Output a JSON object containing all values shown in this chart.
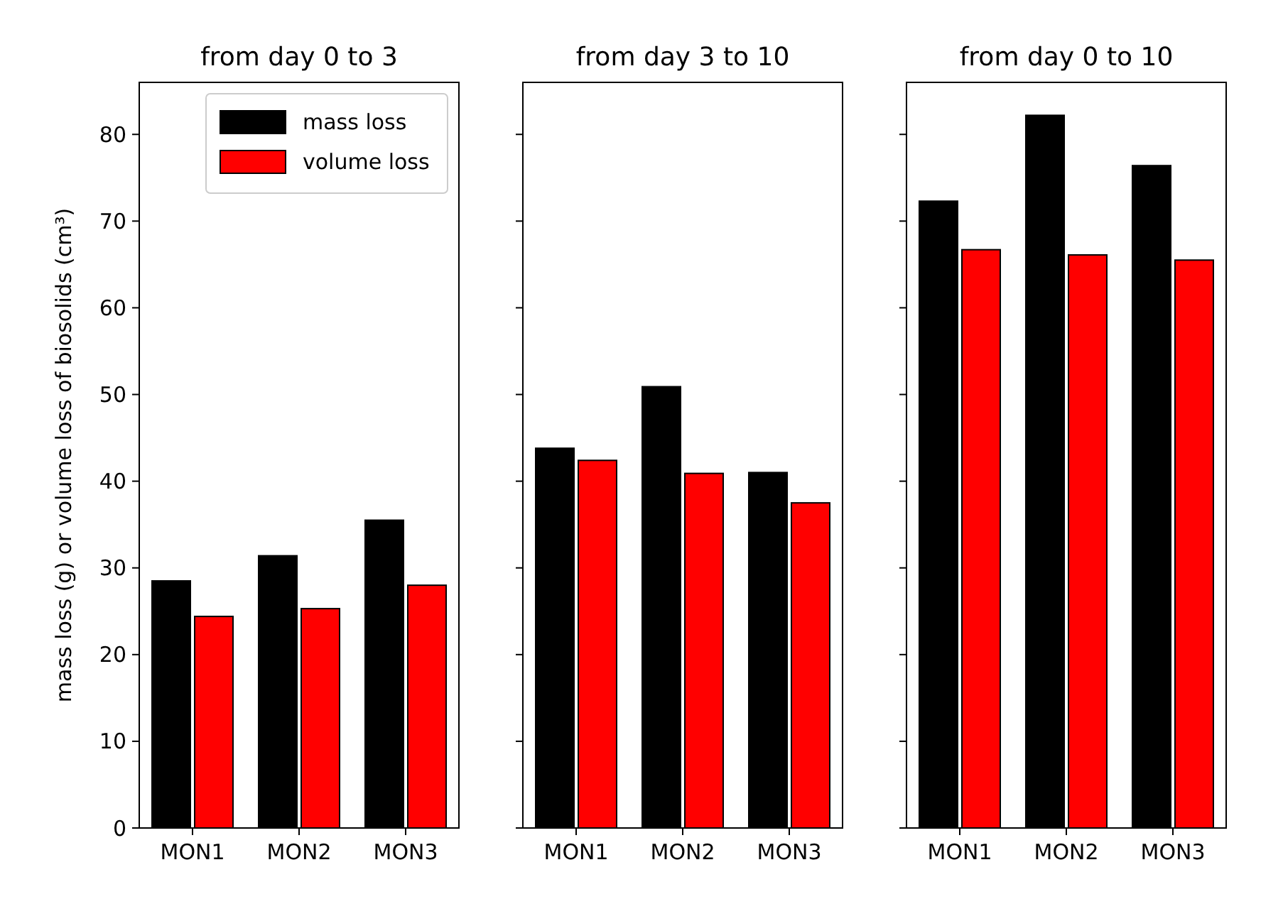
{
  "chart_data": [
    {
      "type": "bar",
      "title": "from day 0 to 3",
      "ylabel": "mass loss (g) or volume loss of biosolids (cm³)",
      "categories": [
        "MON1",
        "MON2",
        "MON3"
      ],
      "series": [
        {
          "name": "mass loss",
          "color": "#000000",
          "values": [
            28.5,
            31.4,
            35.5
          ]
        },
        {
          "name": "volume loss",
          "color": "#ff0000",
          "values": [
            24.4,
            25.3,
            28.0
          ]
        }
      ],
      "ylim": [
        0,
        86
      ],
      "yticks": [
        0,
        10,
        20,
        30,
        40,
        50,
        60,
        70,
        80
      ],
      "legend": "top right"
    },
    {
      "type": "bar",
      "title": "from day 3 to 10",
      "categories": [
        "MON1",
        "MON2",
        "MON3"
      ],
      "series": [
        {
          "color": "#000000",
          "values": [
            43.8,
            50.9,
            41.0
          ]
        },
        {
          "color": "#ff0000",
          "values": [
            42.4,
            40.9,
            37.5
          ]
        }
      ],
      "ylim": [
        0,
        86
      ],
      "yticks": [
        {
          "value": 0,
          "label": null
        },
        {
          "value": 10,
          "label": null
        },
        {
          "value": 20,
          "label": null
        },
        {
          "value": 30,
          "label": null
        },
        {
          "value": 40,
          "label": null
        },
        {
          "value": 50,
          "label": null
        },
        {
          "value": 60,
          "label": null
        },
        {
          "value": 70,
          "label": null
        },
        {
          "value": 80,
          "label": null
        }
      ],
      "tick_labels": "x"
    },
    {
      "type": "bar",
      "title": "from day 0 to 10",
      "categories": [
        "MON1",
        "MON2",
        "MON3"
      ],
      "series": [
        {
          "color": "#000000",
          "values": [
            72.3,
            82.2,
            76.4
          ]
        },
        {
          "color": "#ff0000",
          "values": [
            66.7,
            66.1,
            65.5
          ]
        }
      ],
      "ylim": [
        0,
        86
      ],
      "yticks": [
        {
          "value": 0,
          "label": null
        },
        {
          "value": 10,
          "label": null
        },
        {
          "value": 20,
          "label": null
        },
        {
          "value": 30,
          "label": null
        },
        {
          "value": 40,
          "label": null
        },
        {
          "value": 50,
          "label": null
        },
        {
          "value": 60,
          "label": null
        },
        {
          "value": 70,
          "label": null
        },
        {
          "value": 80,
          "label": null
        }
      ],
      "tick_labels": "x"
    }
  ]
}
